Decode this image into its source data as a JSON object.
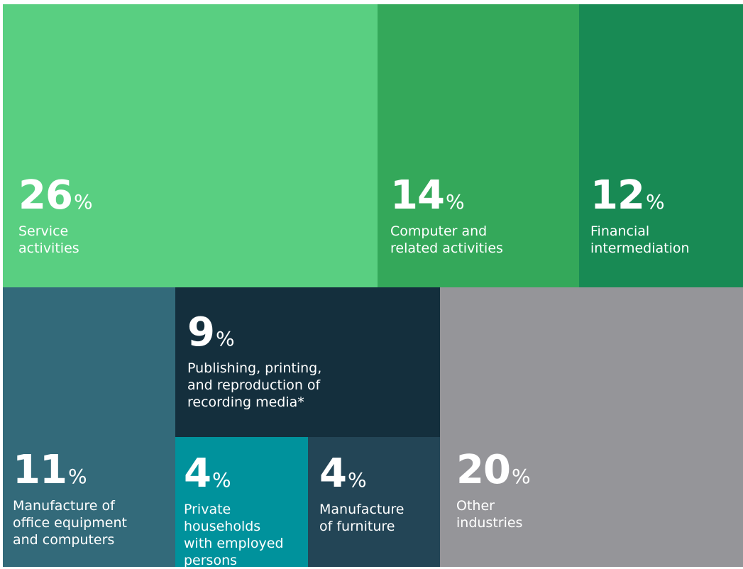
{
  "chart_data": {
    "type": "treemap",
    "unit": "%",
    "items": [
      {
        "label": "Service\nactivities",
        "value": 26,
        "color": "#59cf81"
      },
      {
        "label": "Computer and\nrelated activities",
        "value": 14,
        "color": "#34a85a"
      },
      {
        "label": "Financial\nintermediation",
        "value": 12,
        "color": "#188a54"
      },
      {
        "label": "Manufacture of\noffice equipment\nand computers",
        "value": 11,
        "color": "#336a7a"
      },
      {
        "label": "Publishing, printing,\nand reproduction of\nrecording media*",
        "value": 9,
        "color": "#142f3d"
      },
      {
        "label": "Private\nhouseholds\nwith employed\npersons",
        "value": 4,
        "color": "#00929c"
      },
      {
        "label": "Manufacture\nof furniture",
        "value": 4,
        "color": "#234556"
      },
      {
        "label": "Other\nindustries",
        "value": 20,
        "color": "#959599"
      }
    ]
  }
}
